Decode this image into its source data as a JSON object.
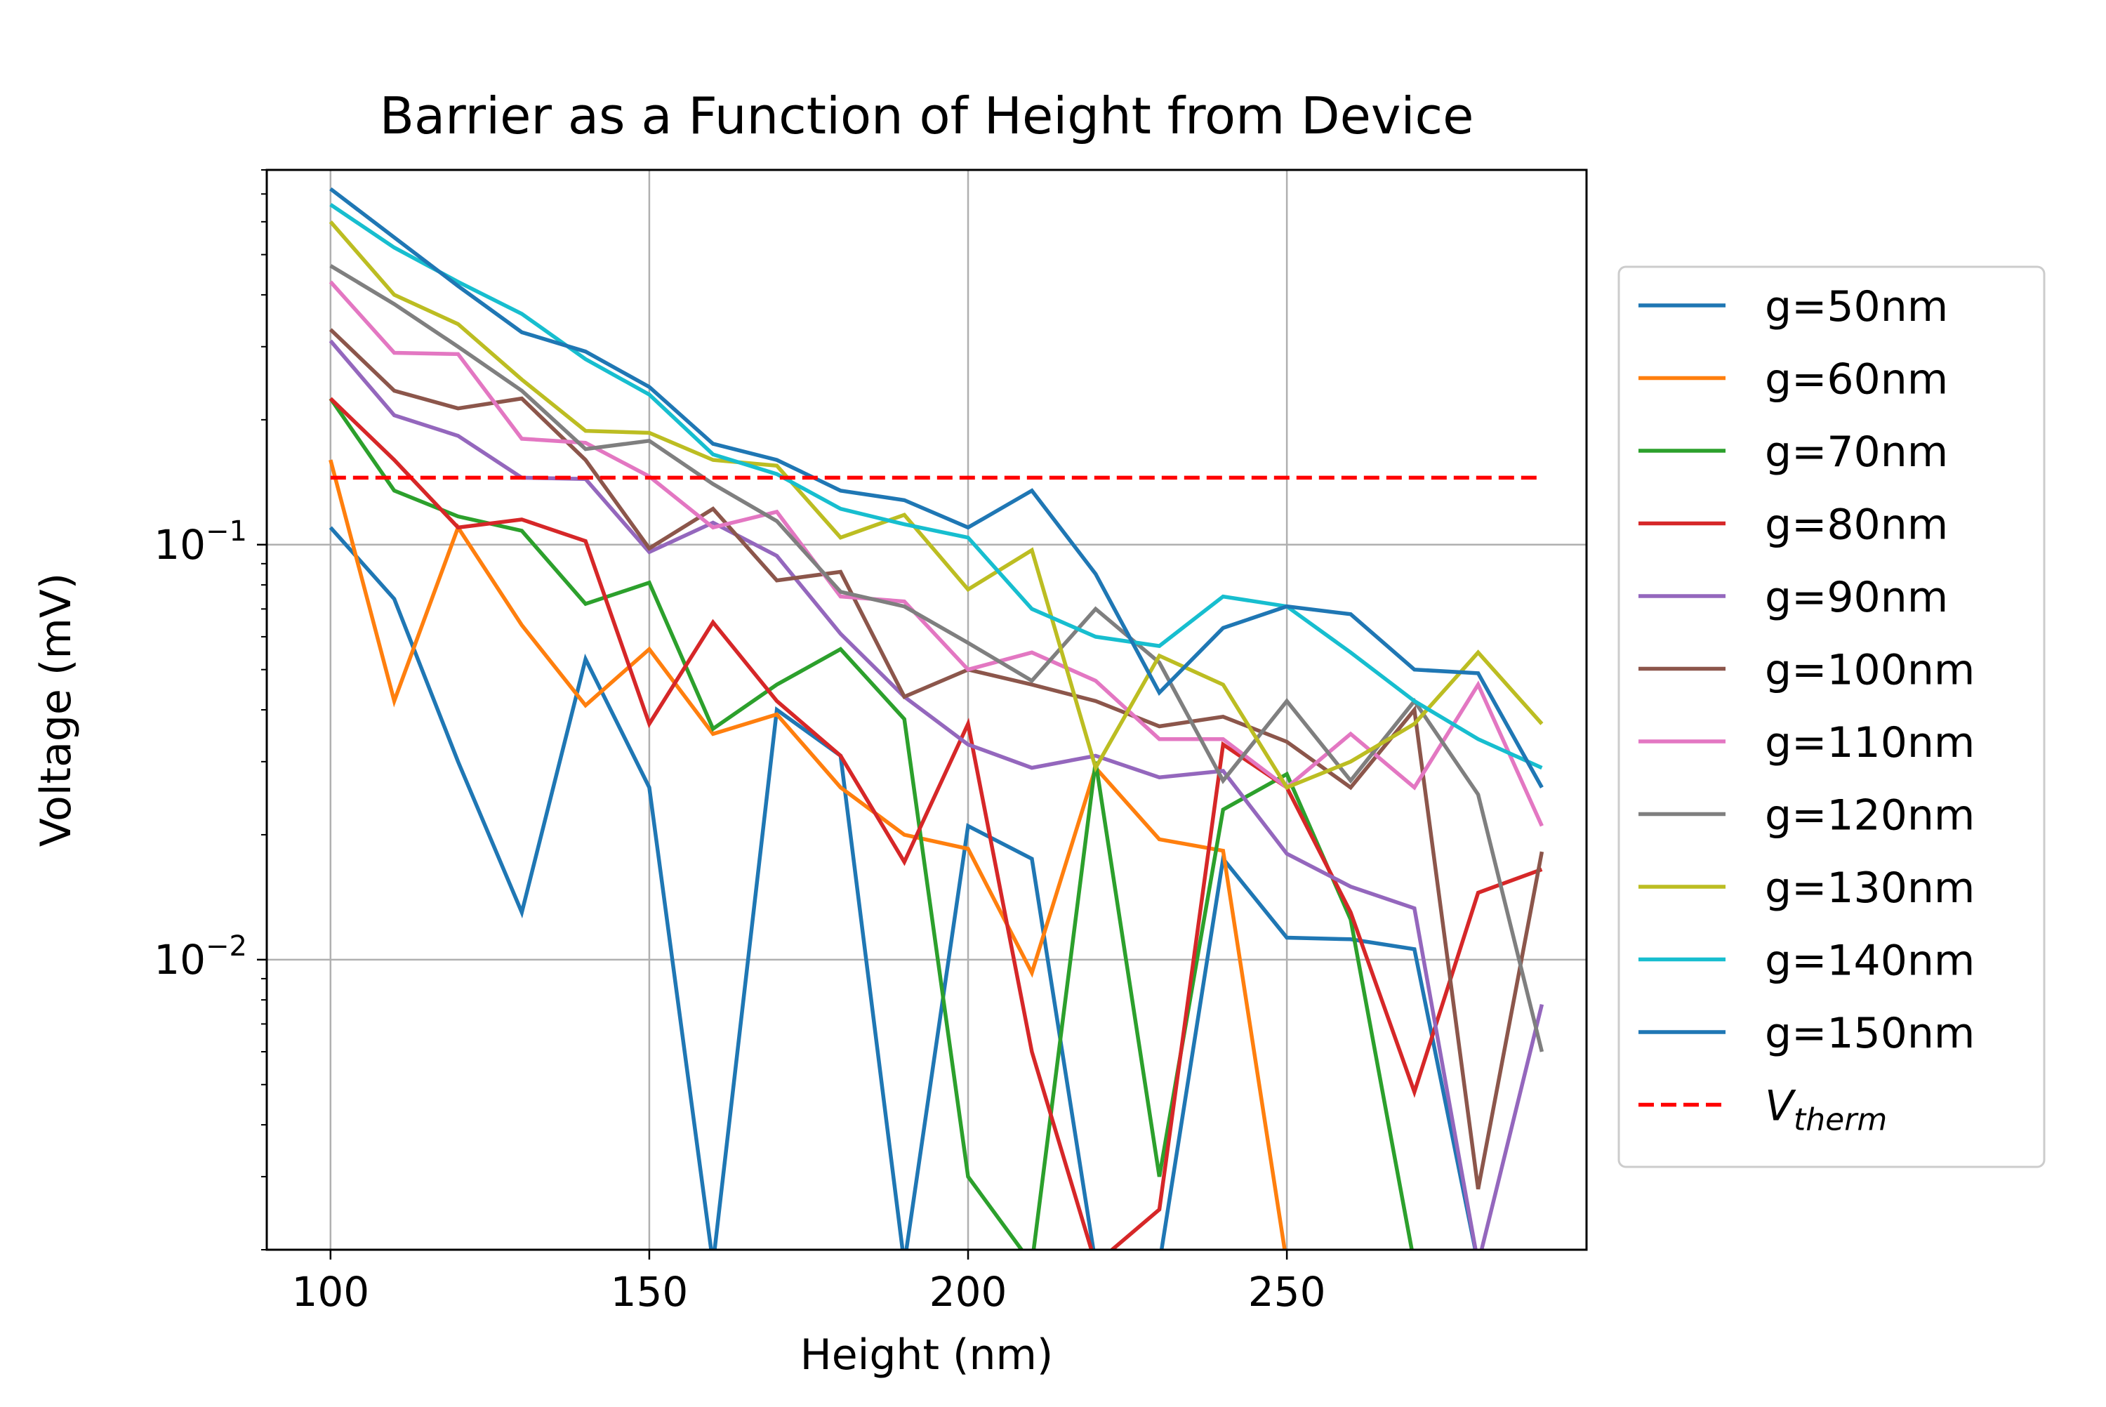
{
  "chart_data": {
    "type": "line",
    "title": "Barrier as a Function of Height from Device",
    "xlabel": "Height (nm)",
    "ylabel": "Voltage (mV)",
    "xlim": [
      90,
      297
    ],
    "ylim": [
      0.002,
      0.8
    ],
    "yscale": "log",
    "grid": true,
    "legend_placement": "outside-right",
    "xticks": [
      {
        "value": 100,
        "label": "100"
      },
      {
        "value": 150,
        "label": "150"
      },
      {
        "value": 200,
        "label": "200"
      },
      {
        "value": 250,
        "label": "250"
      }
    ],
    "yticks": [
      {
        "value": 0.1,
        "base": "10",
        "exp": "−1"
      },
      {
        "value": 0.01,
        "base": "10",
        "exp": "−2"
      }
    ],
    "x": [
      100,
      110,
      120,
      130,
      140,
      150,
      160,
      170,
      180,
      190,
      200,
      210,
      220,
      230,
      240,
      250,
      260,
      270,
      280,
      290
    ],
    "series": [
      {
        "name": "g=50nm",
        "color": "#1f77b4",
        "values": [
          0.11,
          0.074,
          0.03,
          0.013,
          0.053,
          0.026,
          null,
          0.04,
          0.031,
          null,
          0.021,
          0.0175,
          null,
          null,
          0.0175,
          0.0113,
          0.0112,
          0.0106,
          null,
          null
        ]
      },
      {
        "name": "g=60nm",
        "color": "#ff7f0e",
        "values": [
          0.16,
          0.042,
          0.11,
          0.064,
          0.041,
          0.056,
          0.035,
          0.039,
          0.026,
          0.02,
          0.0185,
          0.0093,
          0.029,
          0.0195,
          0.0183,
          null,
          null,
          null,
          null,
          null
        ]
      },
      {
        "name": "g=70nm",
        "color": "#2ca02c",
        "values": [
          0.225,
          0.135,
          0.117,
          0.108,
          0.072,
          0.081,
          0.036,
          0.046,
          0.056,
          0.038,
          0.003,
          null,
          0.03,
          0.003,
          0.023,
          0.028,
          0.0125,
          null,
          null,
          null
        ]
      },
      {
        "name": "g=80nm",
        "color": "#d62728",
        "values": [
          0.225,
          0.16,
          0.11,
          0.115,
          0.102,
          0.037,
          0.065,
          0.042,
          0.031,
          0.0172,
          0.037,
          0.006,
          null,
          0.0025,
          0.033,
          0.026,
          0.013,
          0.0048,
          0.0145,
          0.0165
        ]
      },
      {
        "name": "g=90nm",
        "color": "#9467bd",
        "values": [
          0.31,
          0.205,
          0.183,
          0.145,
          0.144,
          0.096,
          0.113,
          0.094,
          0.061,
          0.043,
          0.033,
          0.029,
          0.031,
          0.0275,
          0.0285,
          0.018,
          0.015,
          0.0133,
          null,
          0.0078
        ]
      },
      {
        "name": "g=100nm",
        "color": "#8c564b",
        "values": [
          0.33,
          0.235,
          0.213,
          0.225,
          0.16,
          0.098,
          0.122,
          0.082,
          0.086,
          0.043,
          0.05,
          0.046,
          0.042,
          0.0365,
          0.0385,
          0.0335,
          0.026,
          0.04,
          0.0028,
          0.0182
        ]
      },
      {
        "name": "g=110nm",
        "color": "#e377c2",
        "values": [
          0.43,
          0.29,
          0.288,
          0.18,
          0.176,
          0.146,
          0.11,
          0.12,
          0.075,
          0.073,
          0.05,
          0.055,
          0.047,
          0.034,
          0.034,
          0.026,
          0.035,
          0.026,
          0.046,
          0.021
        ]
      },
      {
        "name": "g=120nm",
        "color": "#7f7f7f",
        "values": [
          0.47,
          0.38,
          0.3,
          0.235,
          0.17,
          0.178,
          0.14,
          0.114,
          0.077,
          0.071,
          0.058,
          0.047,
          0.07,
          0.052,
          0.027,
          0.042,
          0.027,
          0.042,
          0.025,
          0.006
        ]
      },
      {
        "name": "g=130nm",
        "color": "#bcbd22",
        "values": [
          0.6,
          0.4,
          0.34,
          0.25,
          0.188,
          0.186,
          0.16,
          0.155,
          0.104,
          0.118,
          0.078,
          0.097,
          0.029,
          0.054,
          0.046,
          0.026,
          0.03,
          0.037,
          0.055,
          0.037
        ]
      },
      {
        "name": "g=140nm",
        "color": "#17becf",
        "values": [
          0.66,
          0.52,
          0.43,
          0.36,
          0.28,
          0.23,
          0.165,
          0.148,
          0.122,
          0.112,
          0.104,
          0.07,
          0.06,
          0.057,
          0.075,
          0.071,
          0.055,
          0.042,
          0.034,
          0.029
        ]
      },
      {
        "name": "g=150nm",
        "color": "#1f77b4",
        "values": [
          0.72,
          0.55,
          0.42,
          0.325,
          0.292,
          0.24,
          0.175,
          0.16,
          0.135,
          0.128,
          0.11,
          0.135,
          0.085,
          0.044,
          0.063,
          0.071,
          0.068,
          0.05,
          0.049,
          0.026
        ]
      }
    ],
    "reference_line": {
      "name": "V",
      "subscript": "therm",
      "value": 0.145,
      "x_range": [
        100,
        290
      ],
      "color": "#ff0000",
      "style": "dashed"
    }
  }
}
